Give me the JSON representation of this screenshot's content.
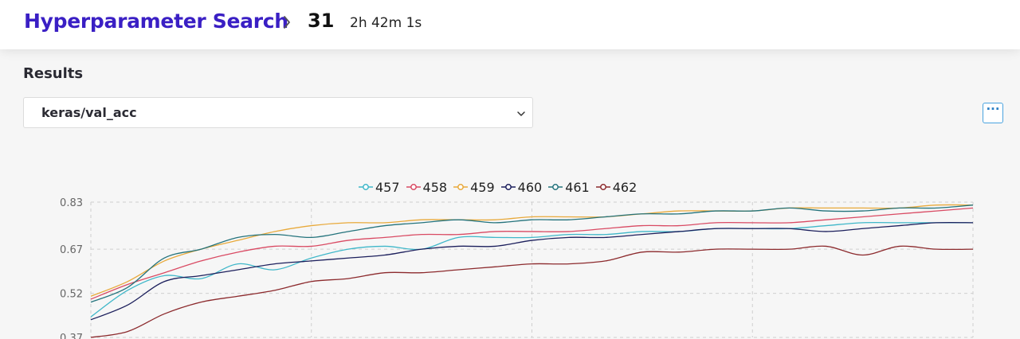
{
  "header": {
    "title": "Hyperparameter Search",
    "trial_number": "31",
    "duration": "2h 42m 1s"
  },
  "results": {
    "section_title": "Results",
    "metric_select": {
      "value": "keras/val_acc"
    },
    "more_button_label": "···"
  },
  "icons": {
    "breadcrumb_separator": "chevron-right-icon",
    "select_dropdown": "chevron-down-icon",
    "more_options": "ellipsis-icon"
  },
  "colors": {
    "title_accent": "#3a1fc4",
    "button_border": "#4aa3df"
  },
  "chart_data": {
    "type": "line",
    "x": [
      0,
      1,
      2,
      3,
      4,
      5,
      6,
      7,
      8,
      9,
      10,
      11,
      12,
      13,
      14,
      15,
      16,
      17,
      18,
      19,
      20,
      21,
      22,
      23,
      24
    ],
    "ylim": [
      0.37,
      0.83
    ],
    "yticks": [
      "0.83",
      "0.67",
      "0.52",
      "0.37"
    ],
    "ytick_values": [
      0.83,
      0.67,
      0.52,
      0.37
    ],
    "grid": true,
    "legend_position": "top-center",
    "series": [
      {
        "name": "457",
        "color": "#3fb7c9",
        "values": [
          0.44,
          0.53,
          0.58,
          0.57,
          0.62,
          0.6,
          0.64,
          0.67,
          0.68,
          0.67,
          0.71,
          0.71,
          0.71,
          0.72,
          0.72,
          0.73,
          0.73,
          0.74,
          0.74,
          0.74,
          0.75,
          0.76,
          0.76,
          0.76,
          0.76
        ]
      },
      {
        "name": "458",
        "color": "#d94a63",
        "values": [
          0.5,
          0.55,
          0.59,
          0.63,
          0.66,
          0.68,
          0.68,
          0.7,
          0.71,
          0.72,
          0.72,
          0.73,
          0.73,
          0.73,
          0.74,
          0.75,
          0.75,
          0.76,
          0.76,
          0.76,
          0.77,
          0.78,
          0.79,
          0.8,
          0.81
        ]
      },
      {
        "name": "459",
        "color": "#e8a93a",
        "values": [
          0.51,
          0.56,
          0.63,
          0.67,
          0.7,
          0.73,
          0.75,
          0.76,
          0.76,
          0.77,
          0.77,
          0.77,
          0.78,
          0.78,
          0.78,
          0.79,
          0.8,
          0.8,
          0.8,
          0.81,
          0.81,
          0.81,
          0.81,
          0.82,
          0.82
        ]
      },
      {
        "name": "460",
        "color": "#1c1f5c",
        "values": [
          0.43,
          0.48,
          0.56,
          0.58,
          0.6,
          0.62,
          0.63,
          0.64,
          0.65,
          0.67,
          0.68,
          0.68,
          0.7,
          0.71,
          0.71,
          0.72,
          0.73,
          0.74,
          0.74,
          0.74,
          0.73,
          0.74,
          0.75,
          0.76,
          0.76
        ]
      },
      {
        "name": "461",
        "color": "#24737c",
        "values": [
          0.49,
          0.54,
          0.64,
          0.67,
          0.71,
          0.72,
          0.71,
          0.73,
          0.75,
          0.76,
          0.77,
          0.76,
          0.77,
          0.77,
          0.78,
          0.79,
          0.79,
          0.8,
          0.8,
          0.81,
          0.8,
          0.8,
          0.81,
          0.81,
          0.82
        ]
      },
      {
        "name": "462",
        "color": "#8c2a2d",
        "values": [
          0.37,
          0.39,
          0.45,
          0.49,
          0.51,
          0.53,
          0.56,
          0.57,
          0.59,
          0.59,
          0.6,
          0.61,
          0.62,
          0.62,
          0.63,
          0.66,
          0.66,
          0.67,
          0.67,
          0.67,
          0.68,
          0.65,
          0.68,
          0.67,
          0.67
        ]
      }
    ]
  }
}
